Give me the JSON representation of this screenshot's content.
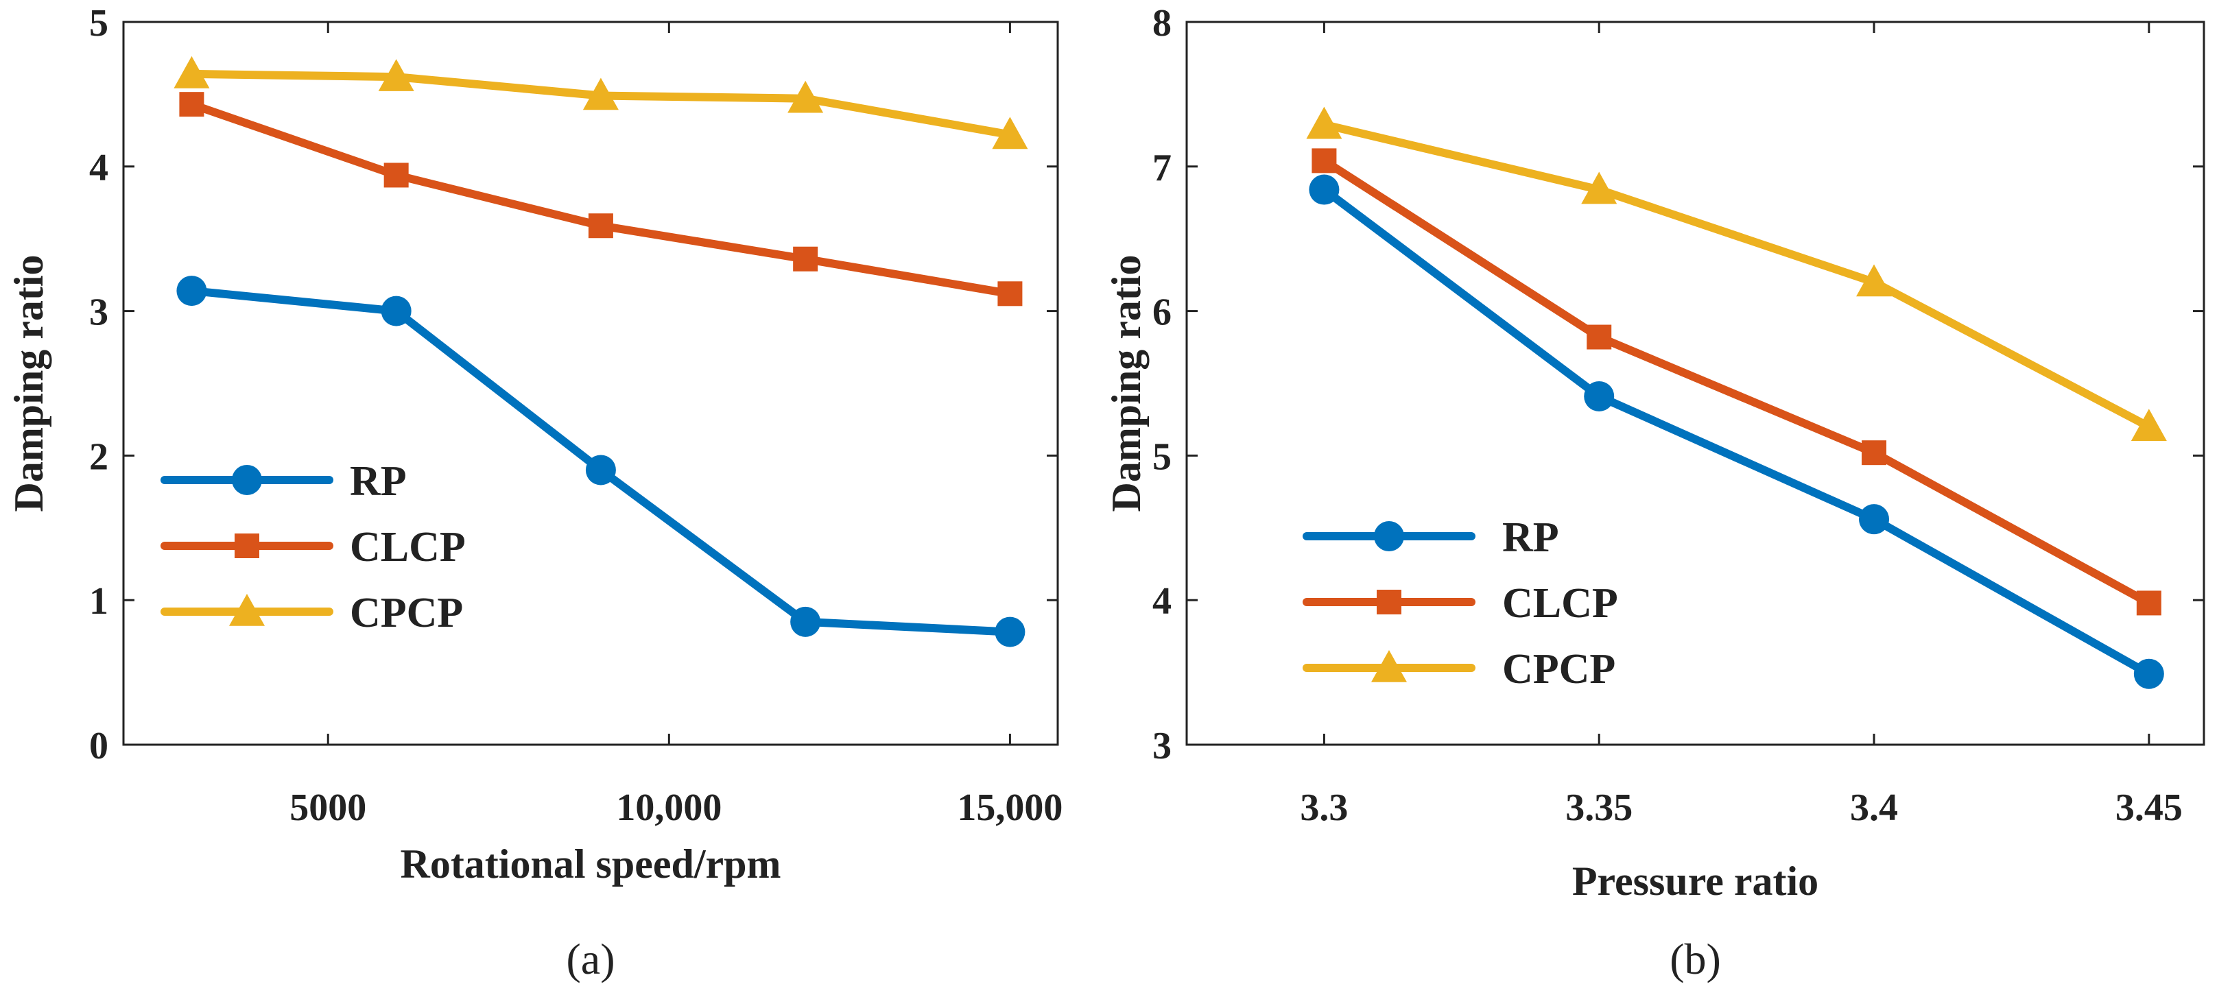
{
  "colors": {
    "RP": "#0072BD",
    "CLCP": "#D95319",
    "CPCP": "#EDB120",
    "axis": "#222222"
  },
  "chart_data": [
    {
      "type": "line",
      "panel_label": "(a)",
      "title": "",
      "xlabel": "Rotational speed/rpm",
      "ylabel": "Damping ratio",
      "x": [
        3000,
        6000,
        9000,
        12000,
        15000
      ],
      "xlim": [
        2000,
        15700
      ],
      "ylim": [
        0,
        5
      ],
      "xticks": [
        5000,
        10000,
        15000
      ],
      "xtick_labels": [
        "5000",
        "10,000",
        "15,000"
      ],
      "yticks": [
        0,
        1,
        2,
        3,
        4,
        5
      ],
      "ytick_labels": [
        "0",
        "1",
        "2",
        "3",
        "4",
        "5"
      ],
      "legend_position": "center-left",
      "series": [
        {
          "name": "RP",
          "marker": "circle",
          "values": [
            3.14,
            3.0,
            1.9,
            0.85,
            0.78
          ]
        },
        {
          "name": "CLCP",
          "marker": "square",
          "values": [
            4.43,
            3.94,
            3.59,
            3.36,
            3.12
          ]
        },
        {
          "name": "CPCP",
          "marker": "triangle",
          "values": [
            4.64,
            4.62,
            4.49,
            4.47,
            4.22
          ]
        }
      ]
    },
    {
      "type": "line",
      "panel_label": "(b)",
      "title": "",
      "xlabel": "Pressure ratio",
      "ylabel": "Damping ratio",
      "x": [
        3.3,
        3.35,
        3.4,
        3.45
      ],
      "xlim": [
        3.275,
        3.46
      ],
      "ylim": [
        3,
        8
      ],
      "xticks": [
        3.3,
        3.35,
        3.4,
        3.45
      ],
      "xtick_labels": [
        "3.3",
        "3.35",
        "3.4",
        "3.45"
      ],
      "yticks": [
        3,
        4,
        5,
        6,
        7,
        8
      ],
      "ytick_labels": [
        "3",
        "4",
        "5",
        "6",
        "7",
        "8"
      ],
      "legend_position": "bottom-left",
      "series": [
        {
          "name": "RP",
          "marker": "circle",
          "values": [
            6.84,
            5.41,
            4.56,
            3.49
          ]
        },
        {
          "name": "CLCP",
          "marker": "square",
          "values": [
            7.04,
            5.82,
            5.02,
            3.98
          ]
        },
        {
          "name": "CPCP",
          "marker": "triangle",
          "values": [
            7.29,
            6.84,
            6.2,
            5.2
          ]
        }
      ]
    }
  ]
}
